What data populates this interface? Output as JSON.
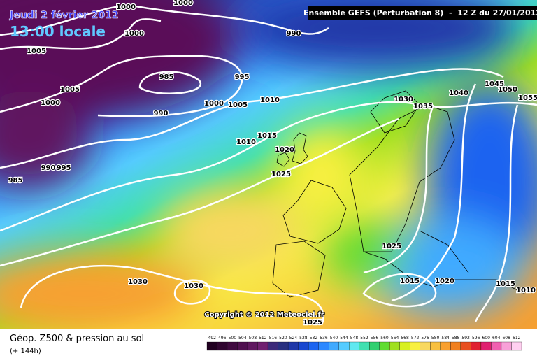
{
  "header": {
    "date": "Jeudi 2 février 2012",
    "time": "13:00 locale",
    "run": "Ensemble GEFS (Perturbation 8)  -  12 Z du 27/01/2012"
  },
  "copyright": "Copyright © 2012 Meteociel.fr",
  "footer": {
    "title": "Géop. Z500 & pression au sol",
    "subtitle": "(+ 144h)"
  },
  "isobars": [
    1000,
    1000,
    990,
    1000,
    1005,
    985,
    995,
    1005,
    1000,
    1000,
    1005,
    1010,
    990,
    1030,
    1035,
    1040,
    1045,
    1050,
    1055,
    1015,
    1010,
    1020,
    990,
    995,
    1025,
    985,
    1025,
    1030,
    1030,
    1015,
    1020,
    1015,
    1010,
    1025
  ],
  "legend": {
    "levels": [
      492,
      496,
      500,
      504,
      508,
      512,
      516,
      520,
      524,
      528,
      532,
      536,
      540,
      544,
      548,
      552,
      556,
      560,
      564,
      568,
      572,
      576,
      580,
      584,
      588,
      592,
      596,
      600,
      604,
      608,
      612
    ],
    "colors": [
      "#200020",
      "#300530",
      "#400a40",
      "#501050",
      "#601860",
      "#702070",
      "#3c2a7a",
      "#283080",
      "#2038a8",
      "#1848d0",
      "#1c64f0",
      "#2c88ff",
      "#40aaff",
      "#55ccff",
      "#60e8f0",
      "#40e0b0",
      "#30d070",
      "#60dc30",
      "#a0e020",
      "#d8f020",
      "#f8f040",
      "#f8d860",
      "#f8c040",
      "#f8a030",
      "#f08020",
      "#e85020",
      "#e02030",
      "#e02070",
      "#f060b0",
      "#f8a0d8",
      "#ffd0f0"
    ]
  }
}
